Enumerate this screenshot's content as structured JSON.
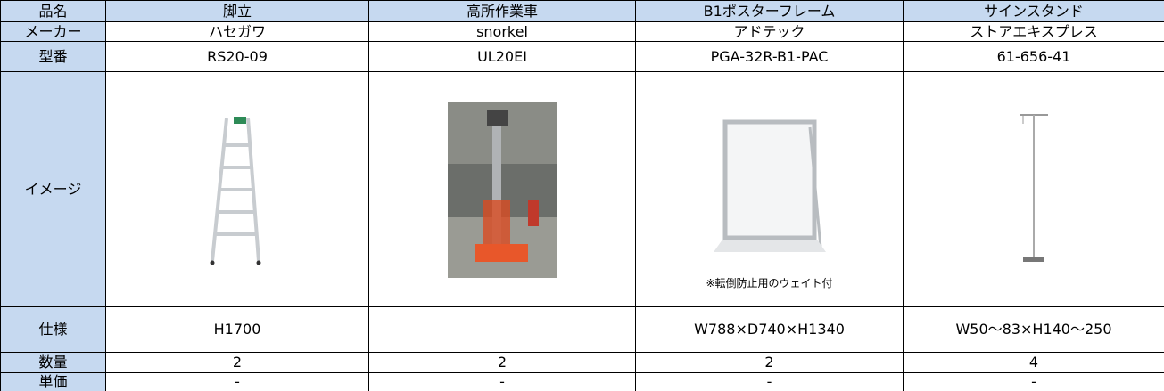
{
  "table": {
    "header": [
      "品名",
      "脚立",
      "高所作業車",
      "B1ポスターフレーム",
      "サインスタンド"
    ],
    "rows": [
      {
        "label": "メーカー",
        "cells": [
          "ハセガワ",
          "snorkel",
          "アドテック",
          "ストアエキスプレス"
        ]
      },
      {
        "label": "型番",
        "cells": [
          "RS20-09",
          "UL20EI",
          "PGA-32R-B1-PAC",
          "61-656-41"
        ]
      },
      {
        "label": "イメージ",
        "note": "※転倒防止用のウェイト付"
      },
      {
        "label": "仕様",
        "cells": [
          "H1700",
          null,
          "W788×D740×H1340",
          "W50～83×H140～250"
        ]
      },
      {
        "label": "数量",
        "cells": [
          "2",
          "2",
          "2",
          "4"
        ]
      },
      {
        "label": "単価",
        "cells": [
          "-",
          "-",
          "-",
          "-"
        ]
      }
    ]
  }
}
